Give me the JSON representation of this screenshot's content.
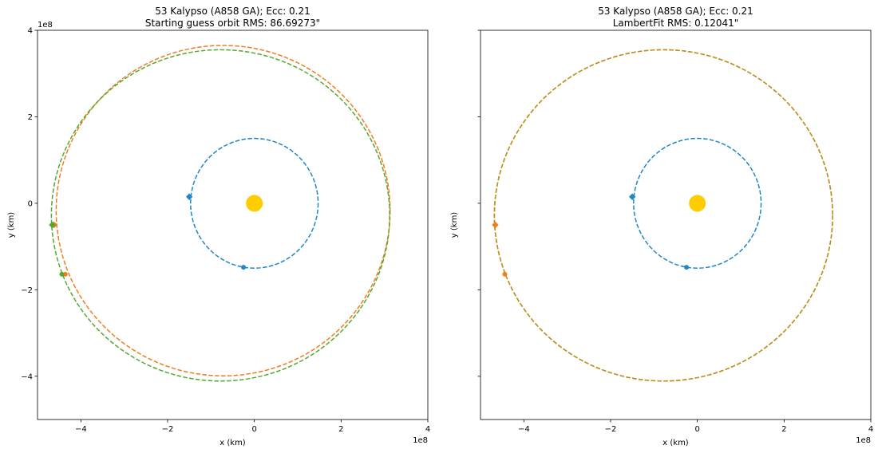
{
  "chart_data": [
    {
      "type": "line",
      "title": [
        "53 Kalypso (A858 GA); Ecc: 0.21",
        "Starting guess orbit RMS: 86.69273\""
      ],
      "xlabel": "x (km)",
      "ylabel": "y (km)",
      "xlim": [
        -5.0,
        4.0
      ],
      "ylim": [
        -5.0,
        4.0
      ],
      "xticks": [
        -4,
        -2,
        0,
        2,
        4
      ],
      "xtick_labels": [
        "−4",
        "−2",
        "0",
        "2",
        "4"
      ],
      "yticks": [
        -4,
        -2,
        0,
        2,
        4
      ],
      "ytick_labels": [
        "−4",
        "−2",
        "0",
        "2",
        "4"
      ],
      "x_offset_label": "1e8",
      "y_offset_label": "1e8",
      "show_ytick_labels": true,
      "grid": false,
      "sun": {
        "x": 0.0,
        "y": 0.0,
        "color": "#ffcc00"
      },
      "series": [
        {
          "role": "earth-orbit",
          "color": "#1f86c8",
          "cx": 0.0,
          "cy": 0.0,
          "rx": 1.47,
          "ry": 1.5,
          "style": "dashed"
        },
        {
          "role": "guess-orbit",
          "color": "#f07d1e",
          "cx": -0.72,
          "cy": -0.17,
          "rx": 3.85,
          "ry": 3.82,
          "style": "dashed"
        },
        {
          "role": "true-orbit",
          "color": "#55a830",
          "cx": -0.78,
          "cy": -0.28,
          "rx": 3.9,
          "ry": 3.83,
          "style": "dashed"
        }
      ],
      "points": [
        {
          "role": "earth-obs-1",
          "color": "#1f86c8",
          "marker": "diamond",
          "x": -1.5,
          "y": 0.15
        },
        {
          "role": "earth-obs-2",
          "color": "#1f86c8",
          "marker": "dot",
          "x": -0.25,
          "y": -1.48
        },
        {
          "role": "guess-obs-1",
          "color": "#f07d1e",
          "marker": "diamond",
          "x": -4.62,
          "y": -0.5
        },
        {
          "role": "guess-obs-2",
          "color": "#f07d1e",
          "marker": "dot",
          "x": -4.36,
          "y": -1.64
        },
        {
          "role": "true-obs-1",
          "color": "#55a830",
          "marker": "diamond",
          "x": -4.66,
          "y": -0.5
        },
        {
          "role": "true-obs-2",
          "color": "#55a830",
          "marker": "dot",
          "x": -4.44,
          "y": -1.64
        }
      ]
    },
    {
      "type": "line",
      "title": [
        "53 Kalypso (A858 GA); Ecc: 0.21",
        "LambertFit RMS: 0.12041\""
      ],
      "xlabel": "x (km)",
      "ylabel": "y (km)",
      "xlim": [
        -5.0,
        4.0
      ],
      "ylim": [
        -5.0,
        4.0
      ],
      "xticks": [
        -4,
        -2,
        0,
        2,
        4
      ],
      "xtick_labels": [
        "−4",
        "−2",
        "0",
        "2",
        "4"
      ],
      "yticks": [
        -4,
        -2,
        0,
        2,
        4
      ],
      "ytick_labels": [],
      "x_offset_label": "1e8",
      "y_offset_label": "",
      "show_ytick_labels": false,
      "grid": false,
      "sun": {
        "x": 0.0,
        "y": 0.0,
        "color": "#ffcc00"
      },
      "series": [
        {
          "role": "earth-orbit",
          "color": "#1f86c8",
          "cx": 0.0,
          "cy": 0.0,
          "rx": 1.47,
          "ry": 1.5,
          "style": "dashed"
        },
        {
          "role": "true-orbit",
          "color": "#55a830",
          "cx": -0.78,
          "cy": -0.28,
          "rx": 3.9,
          "ry": 3.83,
          "style": "dashed"
        },
        {
          "role": "fit-orbit",
          "color": "#c98a1a",
          "cx": -0.78,
          "cy": -0.28,
          "rx": 3.9,
          "ry": 3.83,
          "style": "dashed"
        }
      ],
      "points": [
        {
          "role": "earth-obs-1",
          "color": "#1f86c8",
          "marker": "diamond",
          "x": -1.5,
          "y": 0.15
        },
        {
          "role": "earth-obs-2",
          "color": "#1f86c8",
          "marker": "dot",
          "x": -0.25,
          "y": -1.48
        },
        {
          "role": "fit-obs-1",
          "color": "#f07d1e",
          "marker": "diamond",
          "x": -4.66,
          "y": -0.5
        },
        {
          "role": "fit-obs-2",
          "color": "#f07d1e",
          "marker": "dot",
          "x": -4.44,
          "y": -1.64
        }
      ]
    }
  ]
}
